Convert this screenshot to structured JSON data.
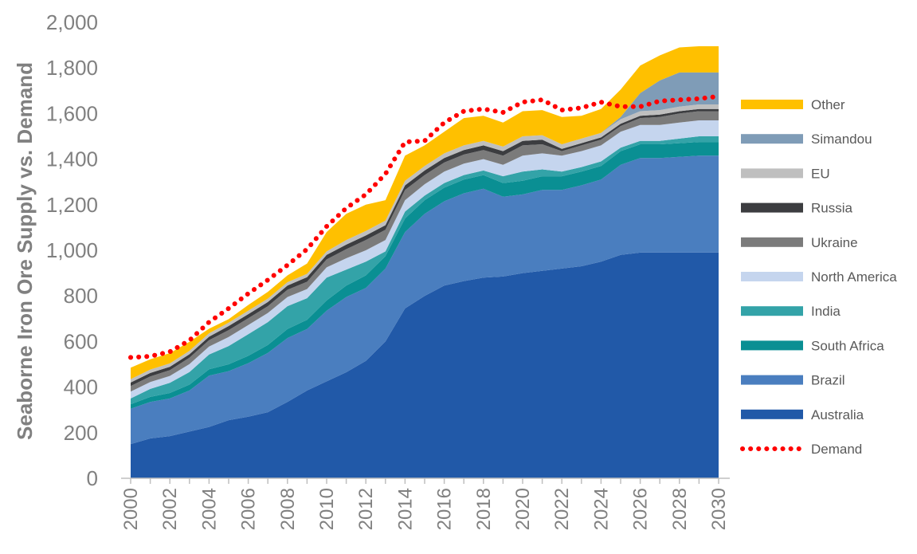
{
  "chart_data": {
    "type": "area",
    "stacked": true,
    "ylabel": "Seaborne Iron Ore Supply vs. Demand",
    "xlabel": "",
    "ylim": [
      0,
      2000
    ],
    "yticks": [
      0,
      200,
      400,
      600,
      800,
      1000,
      1200,
      1400,
      1600,
      1800,
      2000
    ],
    "ytick_labels": [
      "0",
      "200",
      "400",
      "600",
      "800",
      "1,000",
      "1,200",
      "1,400",
      "1,600",
      "1,800",
      "2,000"
    ],
    "x": [
      2000,
      2001,
      2002,
      2003,
      2004,
      2005,
      2006,
      2007,
      2008,
      2009,
      2010,
      2011,
      2012,
      2013,
      2014,
      2015,
      2016,
      2017,
      2018,
      2019,
      2020,
      2021,
      2022,
      2023,
      2024,
      2025,
      2026,
      2027,
      2028,
      2029,
      2030
    ],
    "xticks": [
      2000,
      2002,
      2004,
      2006,
      2008,
      2010,
      2012,
      2014,
      2016,
      2018,
      2020,
      2022,
      2024,
      2026,
      2028,
      2030
    ],
    "xtick_labels": [
      "2000",
      "2002",
      "2004",
      "2006",
      "2008",
      "2010",
      "2012",
      "2014",
      "2016",
      "2018",
      "2020",
      "2022",
      "2024",
      "2026",
      "2028",
      "2030"
    ],
    "grid": false,
    "legend_position": "right",
    "series": [
      {
        "name": "Australia",
        "color": "#2159a8",
        "values": [
          150,
          175,
          185,
          205,
          225,
          255,
          270,
          290,
          335,
          385,
          425,
          465,
          515,
          600,
          745,
          800,
          845,
          865,
          880,
          885,
          900,
          910,
          920,
          930,
          950,
          980,
          990,
          990,
          990,
          990,
          990
        ]
      },
      {
        "name": "Brazil",
        "color": "#4a7ebf",
        "values": [
          155,
          160,
          165,
          180,
          225,
          215,
          235,
          260,
          280,
          270,
          310,
          330,
          320,
          320,
          335,
          360,
          370,
          385,
          390,
          350,
          345,
          355,
          345,
          355,
          360,
          395,
          415,
          415,
          420,
          425,
          425
        ]
      },
      {
        "name": "South Africa",
        "color": "#0a8f93",
        "values": [
          20,
          22,
          24,
          26,
          28,
          30,
          32,
          35,
          40,
          40,
          45,
          50,
          55,
          55,
          60,
          60,
          60,
          60,
          60,
          60,
          60,
          60,
          60,
          60,
          60,
          60,
          60,
          60,
          60,
          60,
          60
        ]
      },
      {
        "name": "India",
        "color": "#33a3a8",
        "values": [
          25,
          35,
          45,
          55,
          65,
          80,
          95,
          100,
          100,
          95,
          100,
          70,
          60,
          20,
          30,
          20,
          20,
          20,
          20,
          30,
          40,
          30,
          20,
          20,
          20,
          15,
          15,
          15,
          20,
          25,
          25
        ]
      },
      {
        "name": "North America",
        "color": "#c5d5ee",
        "values": [
          30,
          30,
          30,
          35,
          35,
          40,
          40,
          40,
          40,
          40,
          45,
          50,
          50,
          50,
          50,
          50,
          50,
          50,
          50,
          50,
          70,
          70,
          70,
          70,
          70,
          70,
          70,
          70,
          70,
          70,
          70
        ]
      },
      {
        "name": "Ukraine",
        "color": "#7b7b7b",
        "values": [
          25,
          25,
          25,
          28,
          28,
          30,
          30,
          30,
          32,
          32,
          35,
          40,
          45,
          45,
          45,
          40,
          40,
          40,
          40,
          40,
          45,
          40,
          20,
          25,
          25,
          25,
          30,
          35,
          40,
          40,
          40
        ]
      },
      {
        "name": "Russia",
        "color": "#3c3d40",
        "values": [
          15,
          15,
          15,
          15,
          15,
          18,
          18,
          18,
          18,
          20,
          20,
          20,
          20,
          20,
          20,
          20,
          20,
          20,
          20,
          20,
          20,
          20,
          10,
          10,
          10,
          10,
          10,
          10,
          10,
          10,
          10
        ]
      },
      {
        "name": "EU",
        "color": "#bfbfbf",
        "values": [
          15,
          15,
          15,
          15,
          15,
          15,
          15,
          15,
          15,
          15,
          15,
          20,
          20,
          20,
          20,
          20,
          20,
          20,
          20,
          20,
          20,
          20,
          20,
          20,
          20,
          20,
          20,
          20,
          20,
          20,
          20
        ]
      },
      {
        "name": "Simandou",
        "color": "#7f9cb7",
        "values": [
          0,
          0,
          0,
          0,
          0,
          0,
          0,
          0,
          0,
          0,
          0,
          0,
          0,
          0,
          0,
          0,
          0,
          0,
          0,
          0,
          0,
          0,
          0,
          0,
          0,
          10,
          80,
          130,
          150,
          140,
          140
        ]
      },
      {
        "name": "Other",
        "color": "#ffc000",
        "values": [
          50,
          45,
          45,
          40,
          20,
          15,
          25,
          30,
          30,
          45,
          85,
          115,
          115,
          90,
          110,
          90,
          95,
          120,
          110,
          105,
          110,
          110,
          120,
          100,
          105,
          120,
          120,
          110,
          110,
          115,
          115
        ]
      }
    ],
    "demand": {
      "name": "Demand",
      "color": "#ff0000",
      "style": "dotted",
      "values": [
        530,
        535,
        555,
        605,
        685,
        745,
        810,
        870,
        935,
        1005,
        1105,
        1185,
        1245,
        1335,
        1475,
        1480,
        1560,
        1610,
        1620,
        1605,
        1650,
        1660,
        1615,
        1625,
        1650,
        1630,
        1630,
        1655,
        1660,
        1665,
        1675
      ]
    }
  }
}
